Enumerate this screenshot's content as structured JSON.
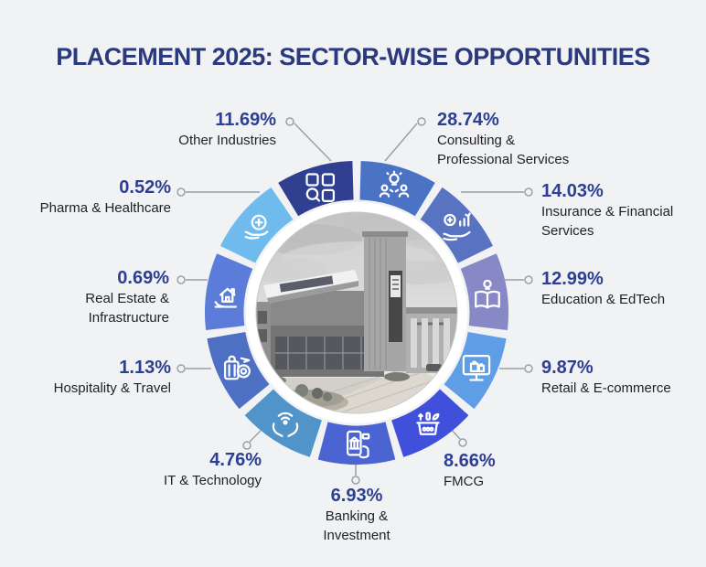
{
  "header": {
    "title": "PLACEMENT 2025: SECTOR-WISE OPPORTUNITIES"
  },
  "palette": {
    "background": "#f1f2f4",
    "title_color": "#2b3a7e",
    "percent_color": "#2c3f93",
    "label_color": "#1f2023",
    "leader_line_color": "#9ba0a6",
    "center_ring_color": "#ffffff"
  },
  "chart_data": {
    "type": "pie",
    "subtype": "donut-infographic",
    "title": "PLACEMENT 2025: SECTOR-WISE OPPORTUNITIES",
    "center_image": "grayscale campus building photo",
    "layout": {
      "equal_angle_segments": true,
      "start_angle_deg": 0,
      "clockwise": true,
      "segment_gap_deg": 3.2,
      "outer_radius": 166,
      "inner_radius": 123.5,
      "legend": "callout labels around donut"
    },
    "segments": [
      {
        "label": "Consulting & Professional Services",
        "value": 28.74,
        "color": "#4a73c6",
        "icon": "consulting-icon"
      },
      {
        "label": "Insurance & Financial Services",
        "value": 14.03,
        "color": "#5873c2",
        "icon": "insurance-icon"
      },
      {
        "label": "Education & EdTech",
        "value": 12.99,
        "color": "#8689c5",
        "icon": "education-icon"
      },
      {
        "label": "Retail & E-commerce",
        "value": 9.87,
        "color": "#5f9de6",
        "icon": "retail-icon"
      },
      {
        "label": "FMCG",
        "value": 8.66,
        "color": "#4150da",
        "icon": "fmcg-icon"
      },
      {
        "label": "Banking & Investment",
        "value": 6.93,
        "color": "#4c64d2",
        "icon": "banking-icon"
      },
      {
        "label": "IT & Technology",
        "value": 4.76,
        "color": "#5094c9",
        "icon": "it-icon"
      },
      {
        "label": "Hospitality & Travel",
        "value": 1.13,
        "color": "#4d70c4",
        "icon": "hospitality-icon"
      },
      {
        "label": "Real Estate & Infrastructure",
        "value": 0.69,
        "color": "#5c7cda",
        "icon": "realestate-icon"
      },
      {
        "label": "Pharma & Healthcare",
        "value": 0.52,
        "color": "#70bbee",
        "icon": "pharma-icon"
      },
      {
        "label": "Other Industries",
        "value": 11.69,
        "color": "#303f90",
        "icon": "other-icon"
      }
    ]
  },
  "labels": {
    "other": {
      "pct": "11.69%",
      "lines": [
        "Other Industries"
      ]
    },
    "consulting": {
      "pct": "28.74%",
      "lines": [
        "Consulting &",
        "Professional Services"
      ]
    },
    "insurance": {
      "pct": "14.03%",
      "lines": [
        "Insurance & Financial",
        "Services"
      ]
    },
    "education": {
      "pct": "12.99%",
      "lines": [
        "Education & EdTech"
      ]
    },
    "retail": {
      "pct": "9.87%",
      "lines": [
        "Retail & E-commerce"
      ]
    },
    "fmcg": {
      "pct": "8.66%",
      "lines": [
        "FMCG"
      ]
    },
    "banking": {
      "pct": "6.93%",
      "lines": [
        "Banking &",
        "Investment"
      ]
    },
    "it": {
      "pct": "4.76%",
      "lines": [
        "IT & Technology"
      ]
    },
    "hospitality": {
      "pct": "1.13%",
      "lines": [
        "Hospitality & Travel"
      ]
    },
    "realestate": {
      "pct": "0.69%",
      "lines": [
        "Real Estate &",
        "Infrastructure"
      ]
    },
    "pharma": {
      "pct": "0.52%",
      "lines": [
        "Pharma & Healthcare"
      ]
    }
  }
}
